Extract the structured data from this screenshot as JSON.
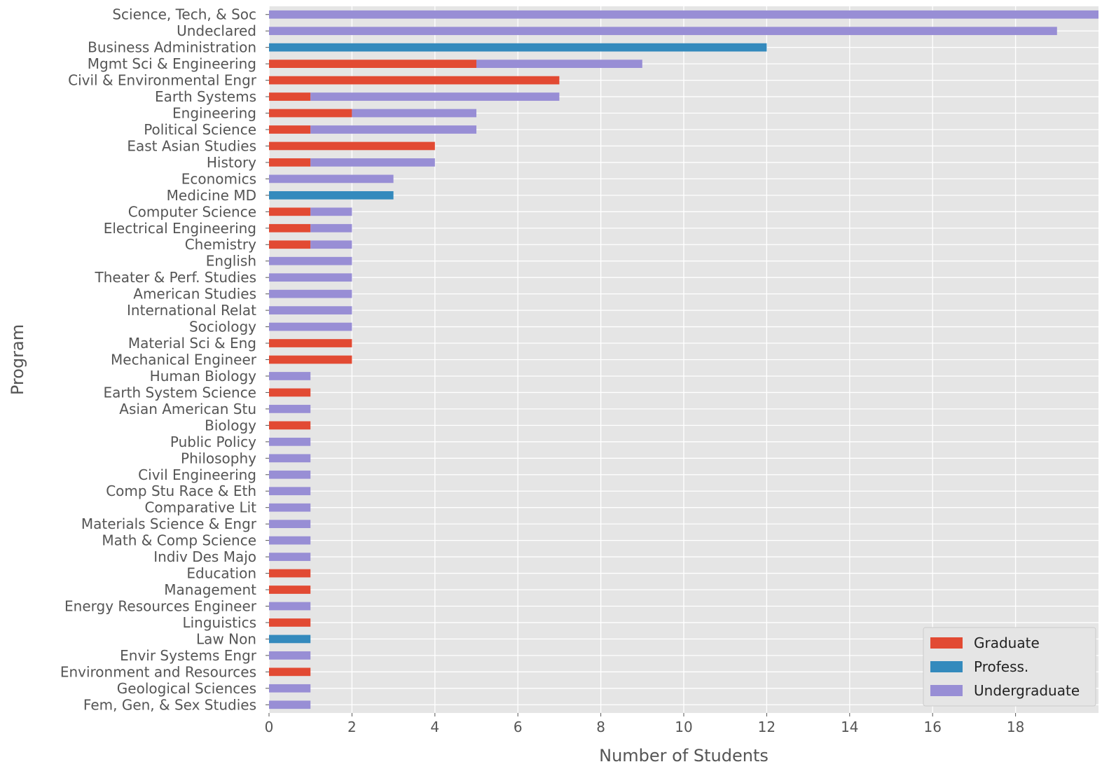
{
  "chart_data": {
    "type": "bar",
    "orientation": "horizontal",
    "stacked": true,
    "style": "ggplot",
    "xlabel": "Number of Students",
    "ylabel": "Program",
    "xlim": [
      0,
      20
    ],
    "xticks": [
      0,
      2,
      4,
      6,
      8,
      10,
      12,
      14,
      16,
      18
    ],
    "grid": true,
    "legend_position": "bottom-right",
    "categories": [
      "Science, Tech, & Soc",
      "Undeclared",
      "Business Administration",
      "Mgmt Sci & Engineering",
      "Civil & Environmental Engr",
      "Earth Systems",
      "Engineering",
      "Political Science",
      "East Asian Studies",
      "History",
      "Economics",
      "Medicine MD",
      "Computer Science",
      "Electrical Engineering",
      "Chemistry",
      "English",
      "Theater & Perf. Studies",
      "American Studies",
      "International Relat",
      "Sociology",
      "Material Sci & Eng",
      "Mechanical Engineer",
      "Human Biology",
      "Earth System Science",
      "Asian American Stu",
      "Biology",
      "Public Policy",
      "Philosophy",
      "Civil Engineering",
      "Comp Stu Race & Eth",
      "Comparative Lit",
      "Materials Science & Engr",
      "Math & Comp Science",
      "Indiv Des Majo",
      "Education",
      "Management",
      "Energy Resources Engineer",
      "Linguistics",
      "Law Non",
      "Envir Systems Engr",
      "Environment and Resources",
      "Geological Sciences",
      "Fem, Gen, & Sex Studies"
    ],
    "series": [
      {
        "name": "Graduate",
        "color": "#E24A33",
        "values": [
          0,
          0,
          0,
          5,
          7,
          1,
          2,
          1,
          4,
          1,
          0,
          0,
          1,
          1,
          1,
          0,
          0,
          0,
          0,
          0,
          2,
          2,
          0,
          1,
          0,
          1,
          0,
          0,
          0,
          0,
          0,
          0,
          0,
          0,
          1,
          1,
          0,
          1,
          0,
          0,
          1,
          0,
          0
        ]
      },
      {
        "name": "Profess.",
        "color": "#348ABD",
        "values": [
          0,
          0,
          12,
          0,
          0,
          0,
          0,
          0,
          0,
          0,
          0,
          3,
          0,
          0,
          0,
          0,
          0,
          0,
          0,
          0,
          0,
          0,
          0,
          0,
          0,
          0,
          0,
          0,
          0,
          0,
          0,
          0,
          0,
          0,
          0,
          0,
          0,
          0,
          1,
          0,
          0,
          0,
          0
        ]
      },
      {
        "name": "Undergraduate",
        "color": "#988ED5",
        "values": [
          20,
          19,
          0,
          4,
          0,
          6,
          3,
          4,
          0,
          3,
          3,
          0,
          1,
          1,
          1,
          2,
          2,
          2,
          2,
          2,
          0,
          0,
          1,
          0,
          1,
          0,
          1,
          1,
          1,
          1,
          1,
          1,
          1,
          1,
          0,
          0,
          1,
          0,
          0,
          1,
          0,
          1,
          1
        ]
      }
    ]
  }
}
